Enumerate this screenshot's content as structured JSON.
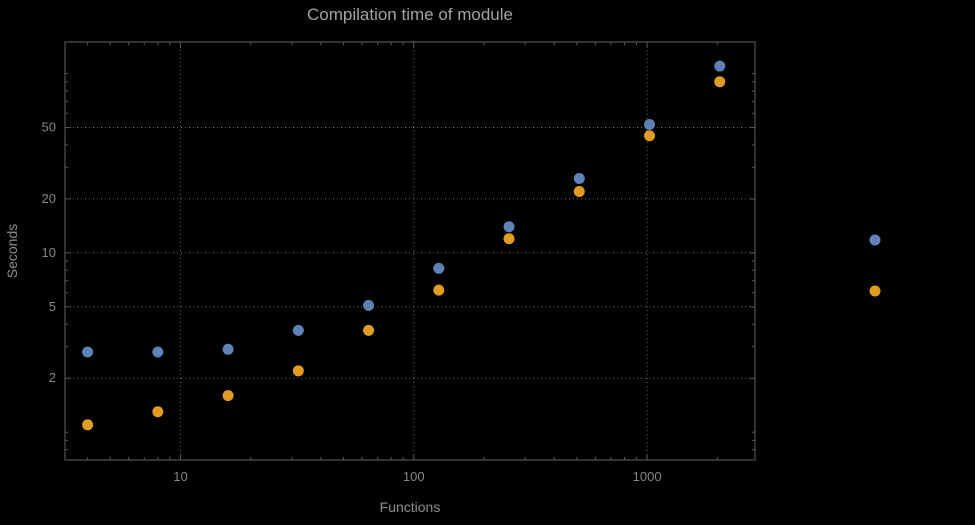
{
  "chart_data": {
    "type": "scatter",
    "title": "Compilation time of module",
    "xlabel": "Functions",
    "ylabel": "Seconds",
    "x_scale": "log",
    "y_scale": "log",
    "grid": "dotted",
    "x_range": [
      3.2,
      2900
    ],
    "y_range": [
      0.7,
      150
    ],
    "x": [
      4,
      8,
      16,
      32,
      64,
      128,
      256,
      512,
      1024,
      2048
    ],
    "series": [
      {
        "name": "blue-series",
        "color": "#5e82b5",
        "values": [
          2.8,
          2.8,
          2.9,
          3.7,
          5.1,
          8.2,
          14,
          26,
          52,
          110
        ]
      },
      {
        "name": "orange-series",
        "color": "#e19c24",
        "values": [
          1.1,
          1.3,
          1.6,
          2.2,
          3.7,
          6.2,
          12,
          22,
          45,
          90
        ]
      }
    ],
    "x_ticks": {
      "major": [
        10,
        100,
        1000
      ],
      "labels": [
        "10",
        "100",
        "1000"
      ]
    },
    "y_ticks": {
      "major": [
        2,
        5,
        10,
        20,
        50
      ],
      "labels": [
        "2",
        "5",
        "10",
        "20",
        "50"
      ]
    },
    "legend": {
      "position": "right-outside",
      "marker_colors": [
        "#5e82b5",
        "#e19c24"
      ]
    }
  }
}
